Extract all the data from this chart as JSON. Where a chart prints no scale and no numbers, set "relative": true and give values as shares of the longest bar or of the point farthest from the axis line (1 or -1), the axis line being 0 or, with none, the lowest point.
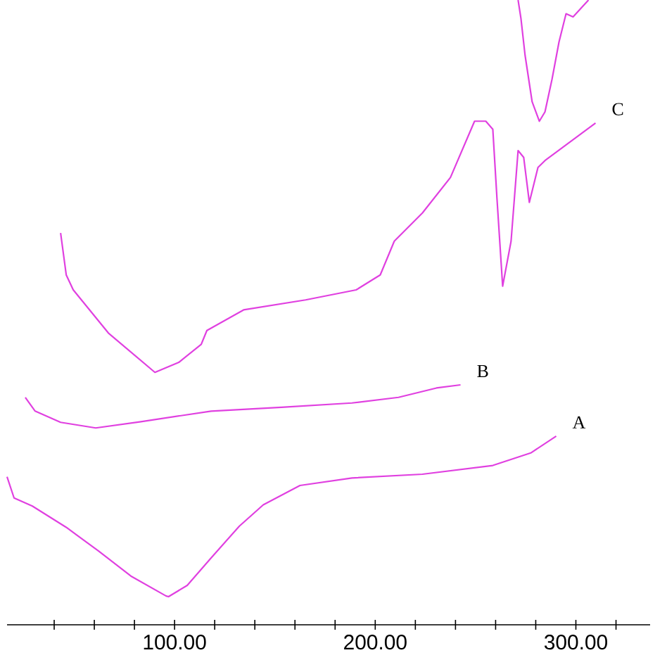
{
  "chart_data": {
    "type": "line",
    "relative": true,
    "xlim": [
      16.5,
      337
    ],
    "xticks": [
      {
        "value": 40,
        "label": null
      },
      {
        "value": 60,
        "label": null
      },
      {
        "value": 80,
        "label": null
      },
      {
        "value": 100,
        "label": "100.00"
      },
      {
        "value": 120,
        "label": null
      },
      {
        "value": 140,
        "label": null
      },
      {
        "value": 160,
        "label": null
      },
      {
        "value": 180,
        "label": null
      },
      {
        "value": 200,
        "label": "200.00"
      },
      {
        "value": 220,
        "label": null
      },
      {
        "value": 240,
        "label": null
      },
      {
        "value": 260,
        "label": null
      },
      {
        "value": 280,
        "label": null
      },
      {
        "value": 300,
        "label": "300.00"
      },
      {
        "value": 320,
        "label": null
      }
    ],
    "series": [
      {
        "name": "A",
        "color": "#e040e0",
        "x": [
          16.5,
          20,
          29.1,
          46,
          62.1,
          78.2,
          95.8,
          97,
          106.3,
          118.2,
          132.3,
          144.2,
          162.5,
          188.4,
          223.5,
          258.6,
          277.5,
          290.2
        ],
        "values": [
          0.237,
          0.203,
          0.19,
          0.156,
          0.118,
          0.078,
          0.046,
          0.045,
          0.063,
          0.107,
          0.158,
          0.192,
          0.223,
          0.235,
          0.241,
          0.255,
          0.275,
          0.302
        ]
      },
      {
        "name": "B",
        "color": "#e040e0",
        "x": [
          25.6,
          30.5,
          43.2,
          60.7,
          83.2,
          118.2,
          153.3,
          188.4,
          211.6,
          230.5,
          242.5
        ],
        "values": [
          0.364,
          0.342,
          0.324,
          0.315,
          0.325,
          0.342,
          0.348,
          0.355,
          0.364,
          0.379,
          0.384
        ]
      },
      {
        "name": "C",
        "color": "#e040e0",
        "x": [
          43.2,
          46,
          49.5,
          67,
          90.2,
          102.1,
          113.3,
          116.1,
          134.4,
          165.3,
          190.5,
          202.5,
          209.5,
          223.5,
          237.5,
          249.5,
          255.1,
          258.6,
          260.7,
          263.5,
          267.7,
          271.2,
          274,
          276.8,
          281.1,
          284.6,
          309.8
        ],
        "values": [
          0.627,
          0.56,
          0.536,
          0.467,
          0.404,
          0.42,
          0.449,
          0.471,
          0.504,
          0.52,
          0.536,
          0.56,
          0.614,
          0.659,
          0.716,
          0.806,
          0.806,
          0.793,
          0.681,
          0.542,
          0.614,
          0.759,
          0.748,
          0.676,
          0.732,
          0.743,
          0.803
        ]
      },
      {
        "color": "#e040e0",
        "x": [
          271.2,
          272.6,
          274.7,
          278.2,
          281.8,
          284.6,
          288.1,
          291.6,
          295.1,
          298.6,
          306.3
        ],
        "values": [
          1,
          0.971,
          0.911,
          0.837,
          0.806,
          0.821,
          0.873,
          0.933,
          0.978,
          0.973,
          1
        ]
      }
    ]
  }
}
